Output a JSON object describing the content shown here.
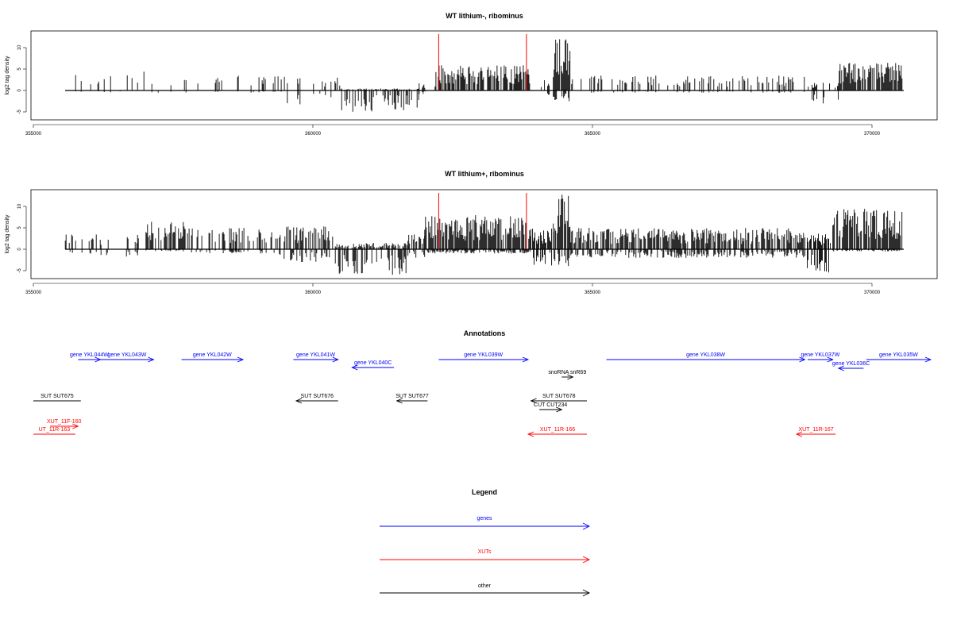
{
  "colors": {
    "genes": "#0000ff",
    "xuts": "#ff0000",
    "other": "#000000",
    "marker": "#ff0000"
  },
  "panels": [
    {
      "title": "WT lithium-, ribominus",
      "ylabel": "log2 tag density",
      "yticks": [
        "-5",
        "0",
        "5",
        "10"
      ],
      "xticks": [
        "355000",
        "360000",
        "365000",
        "370000"
      ]
    },
    {
      "title": "WT lithium+, ribominus",
      "ylabel": "log2 tag density",
      "yticks": [
        "-5",
        "0",
        "5",
        "10"
      ],
      "xticks": [
        "355000",
        "360000",
        "365000",
        "370000"
      ]
    }
  ],
  "annotations": {
    "title": "Annotations",
    "genes": [
      {
        "label": "gene YKL044W",
        "start": 355800,
        "end": 356200,
        "strand": "+"
      },
      {
        "label": "gene YKL043W",
        "start": 356200,
        "end": 357150,
        "strand": "+"
      },
      {
        "label": "gene YKL042W",
        "start": 357650,
        "end": 358750,
        "strand": "+"
      },
      {
        "label": "gene YKL041W",
        "start": 359650,
        "end": 360450,
        "strand": "+"
      },
      {
        "label": "gene YKL040C",
        "start": 360700,
        "end": 361450,
        "strand": "-"
      },
      {
        "label": "gene YKL039W",
        "start": 362250,
        "end": 363850,
        "strand": "+"
      },
      {
        "label": "gene YKL038W",
        "start": 365250,
        "end": 368800,
        "strand": "+"
      },
      {
        "label": "gene YKL037W",
        "start": 368850,
        "end": 369300,
        "strand": "+"
      },
      {
        "label": "gene YKL036C",
        "start": 369400,
        "end": 369850,
        "strand": "-"
      },
      {
        "label": "gene YKL035W",
        "start": 369900,
        "end": 371050,
        "strand": "+"
      }
    ],
    "other": [
      {
        "label": "snoRNA snR69",
        "start": 364450,
        "end": 364650,
        "strand": "+"
      },
      {
        "label": "SUT SUT675",
        "start": 355000,
        "end": 355850,
        "strand": ""
      },
      {
        "label": "SUT SUT676",
        "start": 359700,
        "end": 360450,
        "strand": "-"
      },
      {
        "label": "SUT SUT677",
        "start": 361500,
        "end": 362050,
        "strand": "-"
      },
      {
        "label": "SUT SUT678",
        "start": 363900,
        "end": 364900,
        "strand": "-"
      },
      {
        "label": "CUT CUT234",
        "start": 364050,
        "end": 364450,
        "strand": "+"
      }
    ],
    "xuts": [
      {
        "label": "XUT_11F-160",
        "start": 355300,
        "end": 355800,
        "strand": "+"
      },
      {
        "label": "UT_11R-163",
        "start": 355000,
        "end": 355750,
        "strand": ""
      },
      {
        "label": "XUT_11R-166",
        "start": 363850,
        "end": 364900,
        "strand": "-"
      },
      {
        "label": "XUT_11R-167",
        "start": 368650,
        "end": 369350,
        "strand": "-"
      }
    ]
  },
  "legend": {
    "title": "Legend",
    "items": [
      {
        "label": "genes",
        "color": "#0000ff"
      },
      {
        "label": "XUTs",
        "color": "#ff0000"
      },
      {
        "label": "other",
        "color": "#000000"
      }
    ]
  },
  "chart_data": {
    "type": "bar",
    "title": "WT lithium-, ribominus / WT lithium+, ribominus",
    "ylabel": "log2 tag density",
    "xlim": [
      354950,
      371150
    ],
    "ylim": [
      -7,
      14
    ],
    "marker_positions": [
      362250,
      363820
    ],
    "series": [
      {
        "name": "WT lithium-, ribominus",
        "segments": [
          {
            "start": 355500,
            "end": 357800,
            "density": 0.18,
            "pos_max": 4.5,
            "neg_min": -0.5
          },
          {
            "start": 357800,
            "end": 359500,
            "density": 0.12,
            "pos_max": 3.5,
            "neg_min": -0.5
          },
          {
            "start": 359500,
            "end": 360500,
            "density": 0.2,
            "pos_max": 3.5,
            "neg_min": -3.5
          },
          {
            "start": 360500,
            "end": 361900,
            "density": 0.75,
            "pos_max": 0.5,
            "neg_min": -5
          },
          {
            "start": 361900,
            "end": 362200,
            "density": 0.4,
            "pos_max": 2,
            "neg_min": -1
          },
          {
            "start": 362200,
            "end": 363900,
            "density": 0.85,
            "pos_max": 6,
            "neg_min": 0
          },
          {
            "start": 363900,
            "end": 364300,
            "density": 0.15,
            "pos_max": 3,
            "neg_min": -1
          },
          {
            "start": 364300,
            "end": 364600,
            "density": 1.0,
            "pos_max": 12,
            "neg_min": -2.5
          },
          {
            "start": 364600,
            "end": 368900,
            "density": 0.3,
            "pos_max": 3.5,
            "neg_min": -0.5
          },
          {
            "start": 368900,
            "end": 369400,
            "density": 0.3,
            "pos_max": 2,
            "neg_min": -3.5
          },
          {
            "start": 369400,
            "end": 370550,
            "density": 1.0,
            "pos_max": 6.5,
            "neg_min": 0
          }
        ]
      },
      {
        "name": "WT lithium+, ribominus",
        "segments": [
          {
            "start": 355500,
            "end": 357000,
            "density": 0.3,
            "pos_max": 3.5,
            "neg_min": -2
          },
          {
            "start": 357000,
            "end": 357700,
            "density": 0.85,
            "pos_max": 6.5,
            "neg_min": -0.5
          },
          {
            "start": 357700,
            "end": 359400,
            "density": 0.5,
            "pos_max": 5,
            "neg_min": -1
          },
          {
            "start": 359400,
            "end": 360400,
            "density": 0.6,
            "pos_max": 5.5,
            "neg_min": -3
          },
          {
            "start": 360400,
            "end": 361700,
            "density": 0.9,
            "pos_max": 1.5,
            "neg_min": -6
          },
          {
            "start": 361700,
            "end": 362000,
            "density": 0.6,
            "pos_max": 3.5,
            "neg_min": -2
          },
          {
            "start": 362000,
            "end": 363900,
            "density": 1.0,
            "pos_max": 8,
            "neg_min": -1
          },
          {
            "start": 363900,
            "end": 364300,
            "density": 0.9,
            "pos_max": 5,
            "neg_min": -4
          },
          {
            "start": 364300,
            "end": 364600,
            "density": 1.0,
            "pos_max": 13.5,
            "neg_min": -4
          },
          {
            "start": 364600,
            "end": 368800,
            "density": 0.85,
            "pos_max": 5,
            "neg_min": -2
          },
          {
            "start": 368800,
            "end": 369300,
            "density": 0.8,
            "pos_max": 4,
            "neg_min": -5.5
          },
          {
            "start": 369300,
            "end": 370550,
            "density": 1.0,
            "pos_max": 9.5,
            "neg_min": -0.5
          }
        ]
      }
    ]
  }
}
